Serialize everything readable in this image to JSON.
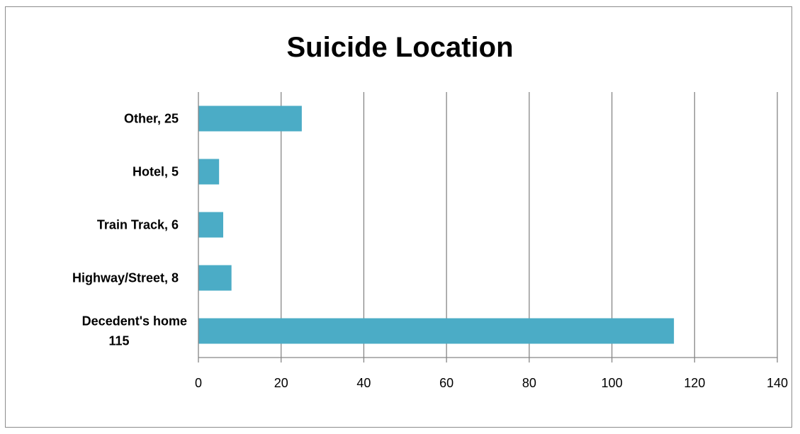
{
  "chart_data": {
    "type": "bar",
    "orientation": "horizontal",
    "title": "Suicide Location",
    "categories": [
      [
        "Decedent's home",
        "115"
      ],
      [
        "Highway/Street, 8"
      ],
      [
        "Train Track, 6"
      ],
      [
        "Hotel, 5"
      ],
      [
        "Other, 25"
      ]
    ],
    "values": [
      115,
      8,
      6,
      5,
      25
    ],
    "xlim": [
      0,
      140
    ],
    "xticks": [
      0,
      20,
      40,
      60,
      80,
      100,
      120,
      140
    ],
    "xlabel": "",
    "ylabel": "",
    "grid": true,
    "legend": "none",
    "bar_color": "#4BACC6",
    "grid_color": "#868686"
  }
}
